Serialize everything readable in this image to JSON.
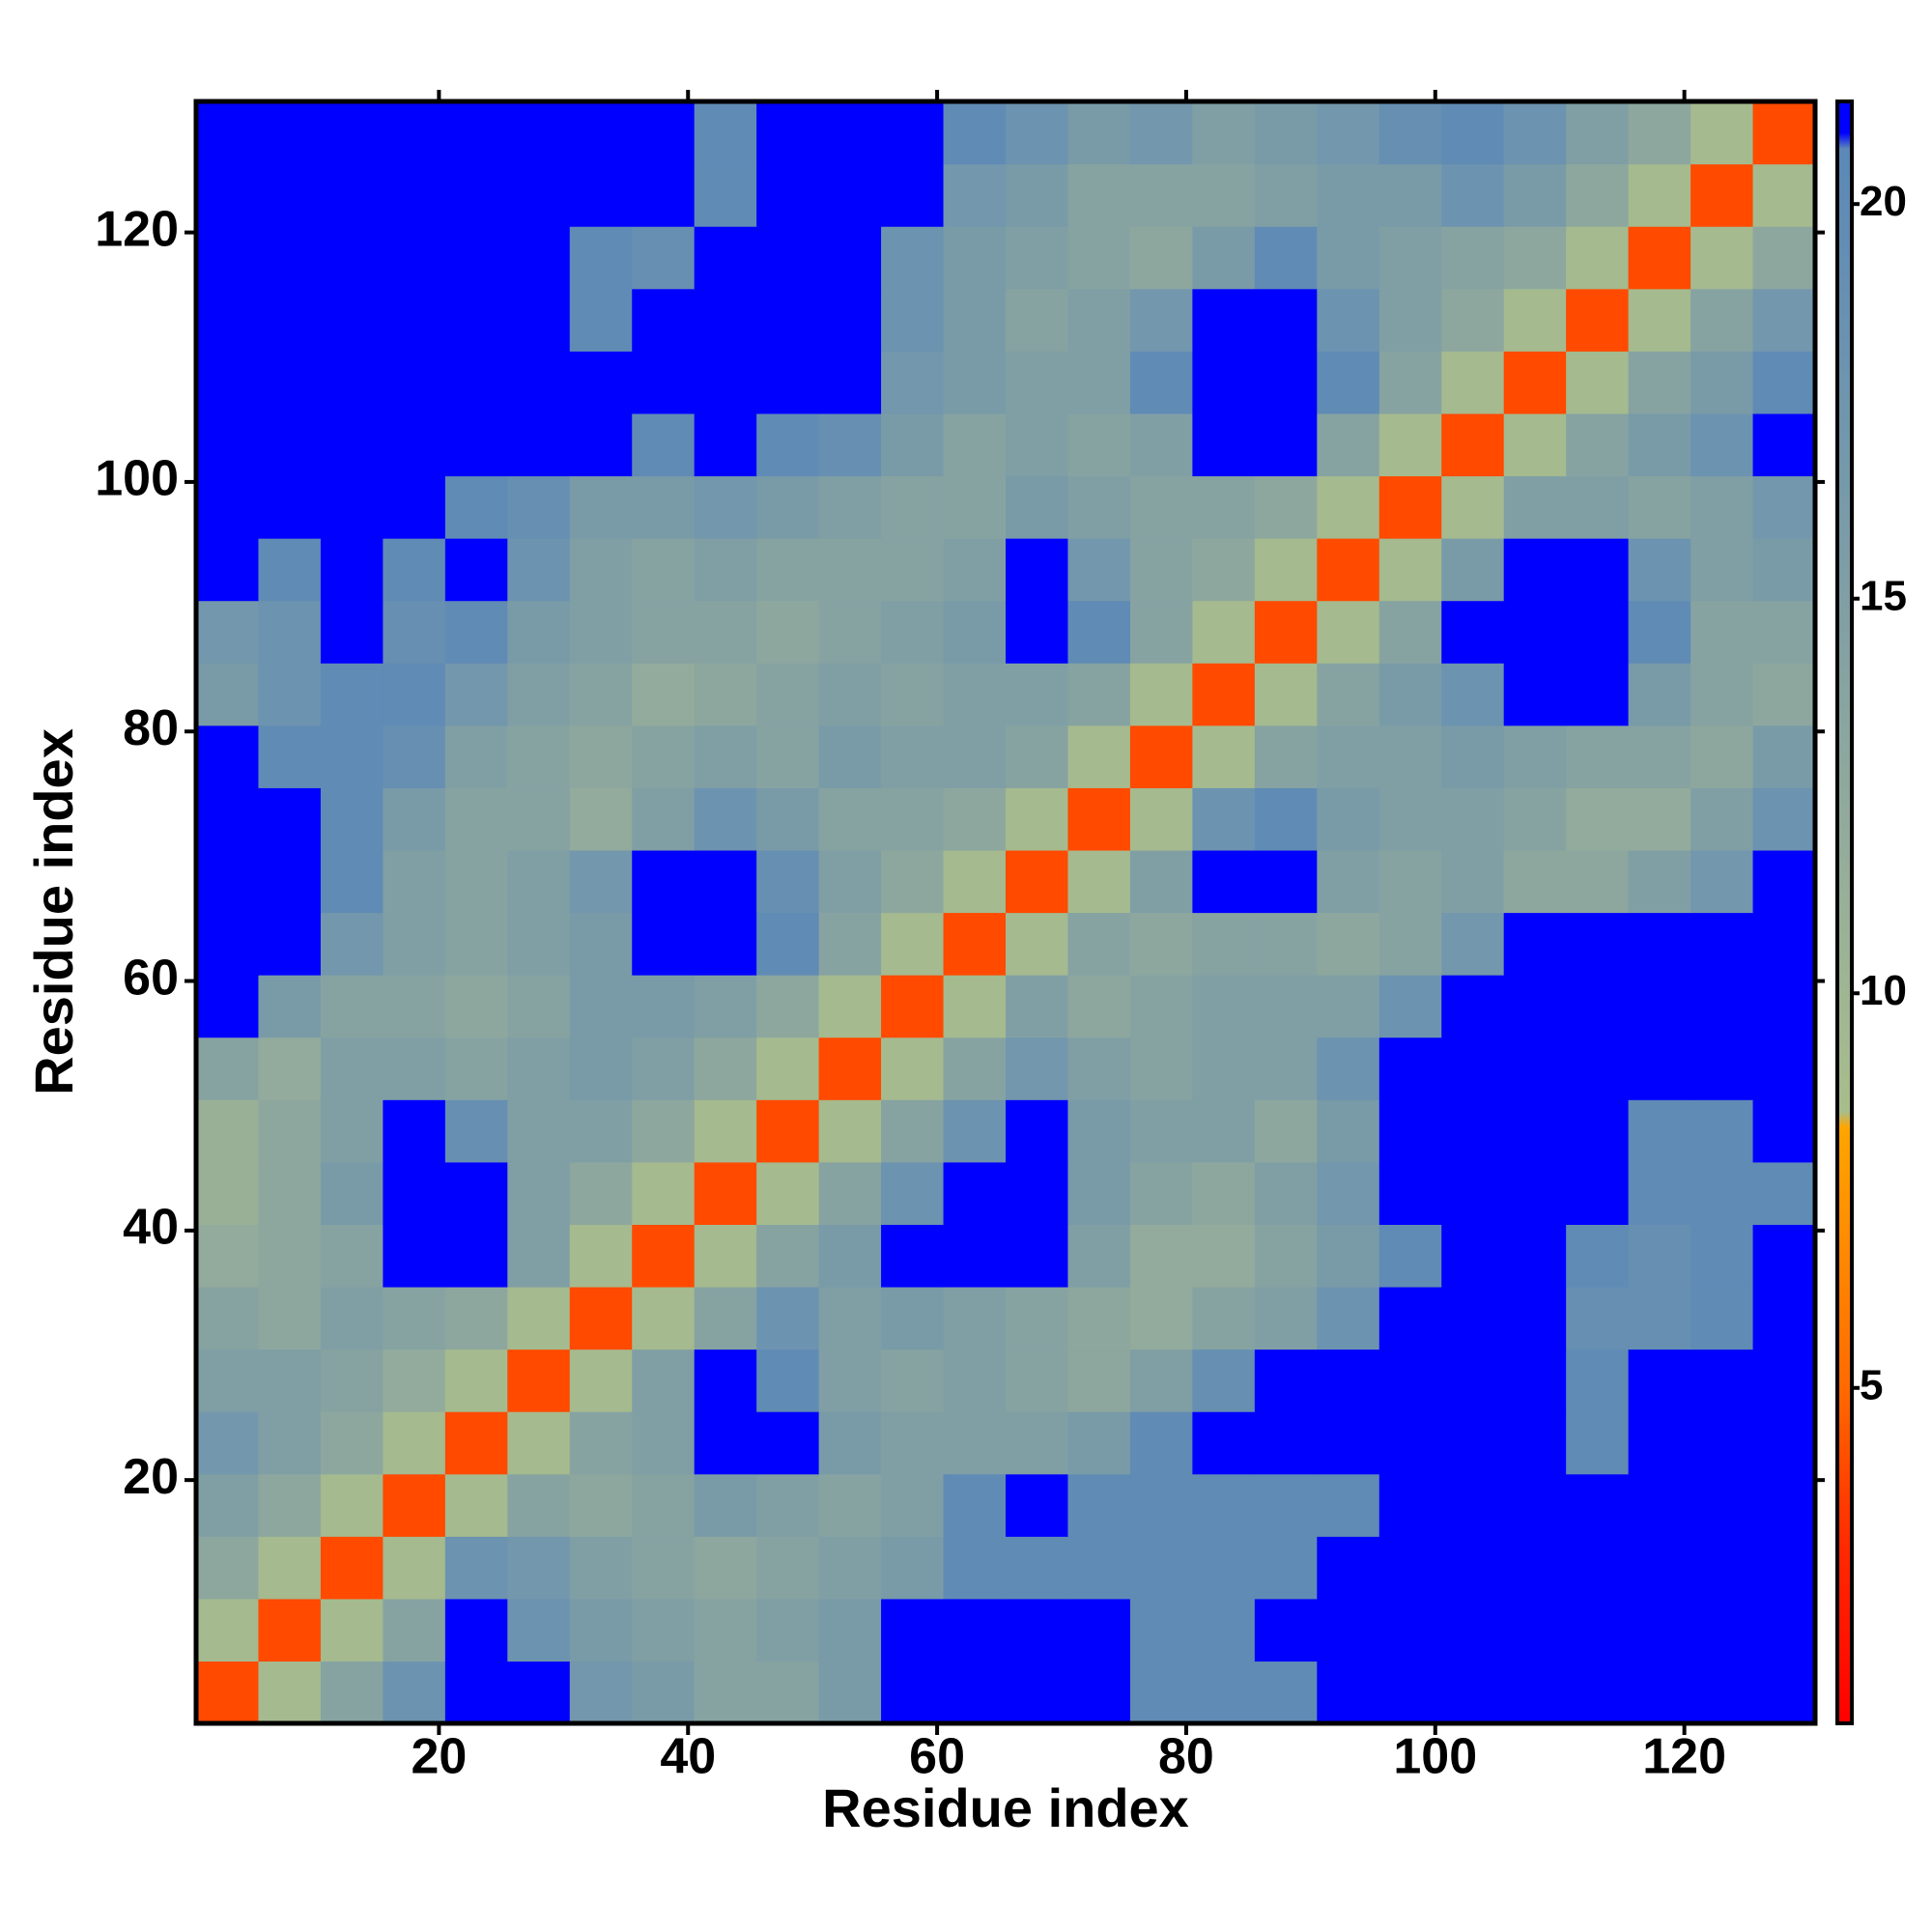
{
  "chart_data": {
    "type": "heatmap",
    "x_label": "Residue index",
    "y_label": "Residue index",
    "xbins": [
      0.5,
      5.5,
      10.5,
      15.5,
      20.5,
      25.5,
      30.5,
      35.5,
      40.5,
      45.5,
      50.5,
      55.5,
      60.5,
      65.5,
      70.5,
      75.5,
      80.5,
      85.5,
      90.5,
      95.5,
      100.5,
      105.5,
      110.5,
      115.5,
      120.5,
      125.5,
      130.5
    ],
    "ybins": [
      0.5,
      5.5,
      10.5,
      15.5,
      20.5,
      25.5,
      30.5,
      35.5,
      40.5,
      45.5,
      50.5,
      55.5,
      60.5,
      65.5,
      70.5,
      75.5,
      80.5,
      85.5,
      90.5,
      95.5,
      100.5,
      105.5,
      110.5,
      115.5,
      120.5,
      125.5,
      130.5
    ],
    "xlim": [
      0.5,
      130.5
    ],
    "ylim": [
      0.5,
      130.5
    ],
    "xticks": [
      20,
      40,
      60,
      80,
      100,
      120
    ],
    "yticks": [
      20,
      40,
      60,
      80,
      100,
      120
    ],
    "zlim": [
      0.75,
      21.3
    ],
    "zticks": [
      5,
      10,
      15,
      20
    ],
    "colorscale": [
      [
        0.75,
        "#ff0000"
      ],
      [
        3,
        "#ff2a00"
      ],
      [
        5,
        "#ff6a00"
      ],
      [
        8.3,
        "#ffa500"
      ],
      [
        8.5,
        "#a8bd8c"
      ],
      [
        12,
        "#93ab9c"
      ],
      [
        20.7,
        "#5b88b7"
      ],
      [
        20.9,
        "#0000ff"
      ],
      [
        21.3,
        "#0000ff"
      ]
    ],
    "values": [
      [
        4,
        9,
        14,
        18,
        22,
        22,
        17,
        16,
        14,
        14,
        16,
        22,
        22,
        22,
        22,
        20,
        20,
        20,
        22,
        22,
        22,
        22,
        22,
        22,
        22,
        22
      ],
      [
        9,
        4,
        9,
        14,
        22,
        18,
        16,
        15,
        14,
        15,
        16,
        22,
        22,
        22,
        22,
        20,
        20,
        22,
        22,
        22,
        22,
        22,
        22,
        22,
        22,
        22
      ],
      [
        13,
        9,
        4,
        9,
        18,
        17,
        15,
        14,
        13,
        14,
        15,
        16,
        20,
        20,
        20,
        20,
        20,
        20,
        21,
        22,
        22,
        22,
        22,
        22,
        22,
        22
      ],
      [
        15,
        13,
        9,
        4,
        9,
        14,
        13,
        14,
        16,
        15,
        14,
        15,
        20,
        21,
        20,
        20,
        20,
        20,
        20,
        21,
        22,
        22,
        22,
        22,
        22,
        22
      ],
      [
        17,
        15,
        13,
        9,
        4,
        9,
        14,
        15,
        22,
        21,
        16,
        15,
        15,
        15,
        16,
        20,
        21,
        22,
        22,
        22,
        22,
        22,
        20,
        22,
        22,
        22
      ],
      [
        15,
        15,
        14,
        12,
        9,
        4,
        9,
        15,
        21,
        20,
        15,
        14,
        15,
        14,
        13,
        15,
        19,
        22,
        22,
        22,
        22,
        21,
        20,
        21,
        22,
        22
      ],
      [
        14,
        13,
        15,
        14,
        13,
        9,
        4,
        9,
        14,
        18,
        15,
        16,
        15,
        14,
        13,
        12,
        14,
        15,
        18,
        22,
        22,
        22,
        19,
        19,
        20,
        22
      ],
      [
        12,
        13,
        14,
        22,
        22,
        15,
        9,
        4,
        9,
        14,
        16,
        21,
        22,
        22,
        15,
        12,
        12,
        14,
        16,
        20,
        22,
        22,
        20,
        19,
        20,
        21
      ],
      [
        11,
        13,
        16,
        22,
        21,
        15,
        13,
        9,
        4,
        9,
        14,
        18,
        22,
        22,
        16,
        14,
        13,
        15,
        17,
        21,
        22,
        22,
        22,
        20,
        20,
        20
      ],
      [
        11,
        13,
        15,
        21,
        19,
        15,
        15,
        13,
        9,
        4,
        9,
        14,
        18,
        21,
        16,
        15,
        15,
        13,
        16,
        21,
        22,
        22,
        22,
        20,
        20,
        21
      ],
      [
        14,
        12,
        15,
        15,
        14,
        15,
        16,
        15,
        13,
        9,
        4,
        9,
        14,
        17,
        15,
        14,
        15,
        15,
        18,
        22,
        22,
        22,
        22,
        22,
        22,
        22
      ],
      [
        21,
        16,
        14,
        14,
        13,
        14,
        16,
        16,
        15,
        13,
        9,
        4,
        9,
        15,
        13,
        14,
        15,
        15,
        15,
        18,
        22,
        22,
        22,
        22,
        22,
        22
      ],
      [
        22,
        22,
        17,
        15,
        14,
        15,
        16,
        22,
        22,
        20,
        14,
        9,
        4,
        9,
        14,
        13,
        14,
        14,
        13,
        14,
        17,
        21,
        22,
        22,
        22,
        22
      ],
      [
        22,
        22,
        20,
        15,
        14,
        15,
        17,
        22,
        22,
        19,
        15,
        13,
        9,
        4,
        9,
        15,
        22,
        21,
        15,
        14,
        15,
        13,
        13,
        15,
        17,
        22
      ],
      [
        22,
        22,
        20,
        16,
        14,
        14,
        12,
        15,
        18,
        16,
        14,
        14,
        13,
        9,
        4,
        9,
        18,
        20,
        16,
        15,
        15,
        14,
        12,
        12,
        15,
        18
      ],
      [
        22,
        20,
        20,
        19,
        15,
        14,
        13,
        14,
        15,
        14,
        16,
        15,
        15,
        14,
        9,
        4,
        9,
        14,
        15,
        15,
        16,
        15,
        14,
        14,
        13,
        16
      ],
      [
        16,
        18,
        20,
        20,
        17,
        15,
        14,
        12,
        13,
        14,
        15,
        14,
        15,
        15,
        14,
        9,
        4,
        9,
        14,
        16,
        18,
        21,
        21,
        16,
        14,
        13
      ],
      [
        17,
        18,
        21,
        19,
        20,
        16,
        15,
        14,
        14,
        13,
        14,
        15,
        16,
        22,
        20,
        14,
        9,
        4,
        9,
        14,
        21,
        22,
        22,
        20,
        14,
        14
      ],
      [
        22,
        20,
        22,
        20,
        22,
        18,
        15,
        14,
        15,
        14,
        14,
        14,
        15,
        21,
        17,
        14,
        13,
        9,
        4,
        9,
        16,
        22,
        22,
        18,
        15,
        16
      ],
      [
        22,
        22,
        22,
        21,
        20,
        19,
        16,
        16,
        17,
        16,
        15,
        14,
        14,
        16,
        15,
        14,
        14,
        13,
        9,
        4,
        9,
        15,
        15,
        14,
        15,
        17
      ],
      [
        22,
        22,
        22,
        22,
        22,
        21,
        21,
        20,
        21,
        20,
        19,
        16,
        14,
        15,
        14,
        15,
        22,
        22,
        14,
        9,
        4,
        9,
        14,
        16,
        18,
        22
      ],
      [
        22,
        22,
        22,
        22,
        22,
        22,
        22,
        22,
        22,
        22,
        22,
        17,
        16,
        15,
        15,
        20,
        22,
        22,
        20,
        14,
        9,
        4,
        9,
        14,
        16,
        20
      ],
      [
        22,
        22,
        22,
        22,
        22,
        21,
        20,
        21,
        22,
        22,
        22,
        18,
        16,
        14,
        15,
        17,
        22,
        22,
        18,
        15,
        13,
        9,
        4,
        9,
        14,
        17
      ],
      [
        22,
        22,
        22,
        22,
        22,
        22,
        20,
        19,
        21,
        22,
        22,
        18,
        16,
        15,
        14,
        13,
        16,
        20,
        16,
        15,
        14,
        13,
        9,
        4,
        9,
        13
      ],
      [
        22,
        22,
        22,
        22,
        22,
        22,
        22,
        21,
        20,
        22,
        22,
        21,
        17,
        16,
        14,
        14,
        14,
        15,
        16,
        16,
        18,
        16,
        13,
        9,
        4,
        9
      ],
      [
        22,
        22,
        22,
        22,
        22,
        22,
        22,
        21,
        20,
        21,
        22,
        22,
        20,
        18,
        16,
        17,
        15,
        16,
        17,
        19,
        20,
        18,
        15,
        13,
        9,
        4
      ]
    ]
  }
}
